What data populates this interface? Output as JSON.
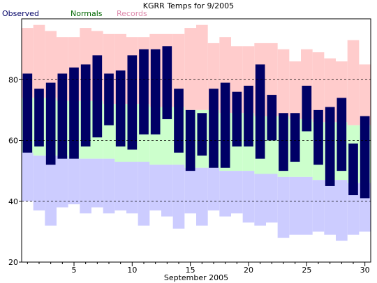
{
  "chart_data": {
    "type": "bar",
    "title": "KGRR Temps for 9/2005",
    "xlabel": "September 2005",
    "ylabel": "",
    "ylim": [
      20,
      100
    ],
    "xlim": [
      0.5,
      30.5
    ],
    "y_ticks": [
      20,
      40,
      60,
      80
    ],
    "x_ticks": [
      5,
      10,
      15,
      20,
      25,
      30
    ],
    "gridlines_y": [
      40,
      60,
      80
    ],
    "grid": "dashed horizontal at 40, 60, 80",
    "legend": {
      "placement": "top-left",
      "entries": [
        {
          "name": "Observed",
          "color": "#000066"
        },
        {
          "name": "Normals",
          "color": "#006600"
        },
        {
          "name": "Records",
          "color": "#dd88aa"
        }
      ]
    },
    "days": [
      1,
      2,
      3,
      4,
      5,
      6,
      7,
      8,
      9,
      10,
      11,
      12,
      13,
      14,
      15,
      16,
      17,
      18,
      19,
      20,
      21,
      22,
      23,
      24,
      25,
      26,
      27,
      28,
      29,
      30
    ],
    "series": [
      {
        "name": "Records",
        "high": [
          97,
          98,
          96,
          94,
          94,
          97,
          96,
          95,
          95,
          94,
          94,
          95,
          95,
          95,
          97,
          98,
          92,
          94,
          91,
          91,
          92,
          92,
          90,
          86,
          90,
          89,
          87,
          86,
          93,
          85
        ],
        "low": [
          40,
          37,
          32,
          38,
          39,
          36,
          38,
          36,
          37,
          36,
          32,
          37,
          35,
          31,
          36,
          32,
          37,
          35,
          36,
          33,
          32,
          33,
          28,
          29,
          29,
          30,
          29,
          27,
          29,
          30
        ],
        "colors": {
          "high": "#ffcccc",
          "low": "#ccccff"
        }
      },
      {
        "name": "Normals",
        "high": [
          56,
          55,
          55,
          55,
          54,
          54,
          54,
          54,
          53,
          53,
          53,
          52,
          52,
          52,
          51,
          51,
          51,
          50,
          50,
          50,
          49,
          49,
          48,
          48,
          48,
          47,
          47,
          47,
          46,
          46
        ],
        "low": [
          56,
          55,
          55,
          55,
          54,
          54,
          54,
          54,
          53,
          53,
          53,
          52,
          52,
          52,
          51,
          51,
          51,
          50,
          50,
          50,
          49,
          49,
          48,
          48,
          48,
          47,
          47,
          47,
          46,
          46
        ],
        "normal_high": [
          74,
          74,
          74,
          73,
          73,
          73,
          73,
          72,
          72,
          72,
          72,
          71,
          71,
          71,
          70,
          70,
          70,
          69,
          69,
          69,
          68,
          68,
          68,
          67,
          67,
          66,
          66,
          66,
          65,
          65
        ],
        "normal_low": [
          56,
          55,
          55,
          55,
          54,
          54,
          54,
          54,
          53,
          53,
          53,
          52,
          52,
          52,
          51,
          51,
          51,
          50,
          50,
          50,
          49,
          49,
          48,
          48,
          48,
          47,
          47,
          47,
          46,
          46
        ],
        "color": "#ccffcc"
      },
      {
        "name": "Observed",
        "high": [
          82,
          77,
          79,
          82,
          84,
          85,
          88,
          82,
          83,
          88,
          90,
          90,
          91,
          77,
          70,
          69,
          77,
          79,
          76,
          78,
          85,
          75,
          69,
          69,
          78,
          70,
          71,
          74,
          59,
          68
        ],
        "low": [
          56,
          58,
          52,
          54,
          54,
          58,
          61,
          65,
          58,
          57,
          62,
          62,
          67,
          56,
          50,
          55,
          51,
          51,
          58,
          58,
          54,
          60,
          50,
          53,
          63,
          52,
          45,
          50,
          42,
          41
        ],
        "color": "#000066"
      }
    ]
  }
}
